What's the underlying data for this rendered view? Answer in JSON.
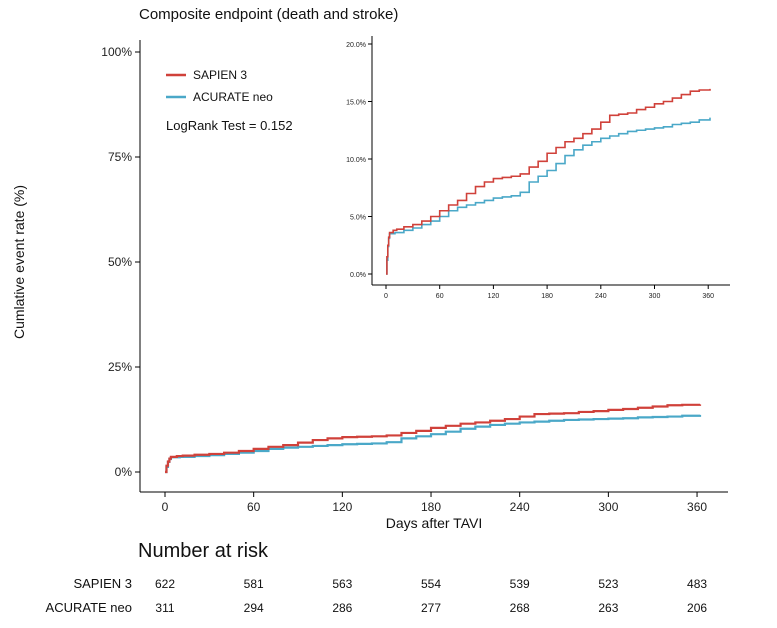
{
  "chart_data": {
    "type": "line",
    "title": "Composite endpoint (death and stroke)",
    "xlabel": "Days after TAVI",
    "ylabel": "Cumlative event rate (%)",
    "xlim": [
      0,
      365
    ],
    "ylim": [
      0,
      100
    ],
    "x_ticks": [
      0,
      60,
      120,
      180,
      240,
      300,
      360
    ],
    "y_ticks": [
      0,
      25,
      50,
      75,
      100
    ],
    "y_tick_labels": [
      "0%",
      "25%",
      "50%",
      "75%",
      "100%"
    ],
    "legend": {
      "position": "top-left"
    },
    "annotation": "LogRank Test = 0.152",
    "series": [
      {
        "name": "SAPIEN 3",
        "color": "#d0413a",
        "points": [
          [
            0,
            0
          ],
          [
            1,
            1.5
          ],
          [
            2,
            2.5
          ],
          [
            3,
            3.2
          ],
          [
            4,
            3.6
          ],
          [
            8,
            3.8
          ],
          [
            12,
            3.9
          ],
          [
            20,
            4.1
          ],
          [
            30,
            4.3
          ],
          [
            40,
            4.6
          ],
          [
            50,
            5.0
          ],
          [
            60,
            5.5
          ],
          [
            70,
            6.0
          ],
          [
            80,
            6.4
          ],
          [
            90,
            7.0
          ],
          [
            100,
            7.6
          ],
          [
            110,
            8.0
          ],
          [
            120,
            8.3
          ],
          [
            130,
            8.4
          ],
          [
            140,
            8.5
          ],
          [
            150,
            8.7
          ],
          [
            160,
            9.3
          ],
          [
            170,
            9.8
          ],
          [
            180,
            10.5
          ],
          [
            190,
            11.0
          ],
          [
            200,
            11.5
          ],
          [
            210,
            11.8
          ],
          [
            220,
            12.2
          ],
          [
            230,
            12.6
          ],
          [
            240,
            13.2
          ],
          [
            250,
            13.8
          ],
          [
            260,
            13.9
          ],
          [
            270,
            14.0
          ],
          [
            280,
            14.3
          ],
          [
            290,
            14.5
          ],
          [
            300,
            14.8
          ],
          [
            310,
            15.0
          ],
          [
            320,
            15.3
          ],
          [
            330,
            15.6
          ],
          [
            340,
            15.9
          ],
          [
            350,
            16.0
          ],
          [
            362,
            16.1
          ]
        ]
      },
      {
        "name": "ACURATE neo",
        "color": "#4aa8c8",
        "points": [
          [
            0,
            0
          ],
          [
            1,
            1.2
          ],
          [
            2,
            2.4
          ],
          [
            3,
            3.1
          ],
          [
            4,
            3.5
          ],
          [
            10,
            3.6
          ],
          [
            20,
            3.8
          ],
          [
            30,
            4.0
          ],
          [
            40,
            4.3
          ],
          [
            50,
            4.6
          ],
          [
            60,
            5.0
          ],
          [
            70,
            5.5
          ],
          [
            80,
            5.8
          ],
          [
            90,
            6.0
          ],
          [
            100,
            6.2
          ],
          [
            110,
            6.4
          ],
          [
            120,
            6.6
          ],
          [
            130,
            6.7
          ],
          [
            140,
            6.8
          ],
          [
            150,
            7.1
          ],
          [
            160,
            8.0
          ],
          [
            170,
            8.5
          ],
          [
            180,
            9.0
          ],
          [
            190,
            9.6
          ],
          [
            200,
            10.3
          ],
          [
            210,
            10.8
          ],
          [
            220,
            11.2
          ],
          [
            230,
            11.5
          ],
          [
            240,
            11.8
          ],
          [
            250,
            12.0
          ],
          [
            260,
            12.2
          ],
          [
            270,
            12.4
          ],
          [
            280,
            12.5
          ],
          [
            290,
            12.6
          ],
          [
            300,
            12.7
          ],
          [
            310,
            12.8
          ],
          [
            320,
            13.0
          ],
          [
            330,
            13.1
          ],
          [
            340,
            13.2
          ],
          [
            350,
            13.4
          ],
          [
            362,
            13.6
          ]
        ]
      }
    ],
    "inset": {
      "xlim": [
        0,
        365
      ],
      "ylim": [
        0,
        20
      ],
      "x_ticks": [
        0,
        60,
        120,
        180,
        240,
        300,
        360
      ],
      "y_ticks": [
        0,
        5,
        10,
        15,
        20
      ],
      "y_tick_labels": [
        "0.0%",
        "5.0%",
        "10.0%",
        "15.0%",
        "20.0%"
      ]
    }
  },
  "risk_table": {
    "title": "Number at risk",
    "x": [
      0,
      60,
      120,
      180,
      240,
      300,
      360
    ],
    "rows": [
      {
        "label": "SAPIEN 3",
        "values": [
          "622",
          "581",
          "563",
          "554",
          "539",
          "523",
          "483"
        ]
      },
      {
        "label": "ACURATE neo",
        "values": [
          "311",
          "294",
          "286",
          "277",
          "268",
          "263",
          "206"
        ]
      }
    ]
  }
}
